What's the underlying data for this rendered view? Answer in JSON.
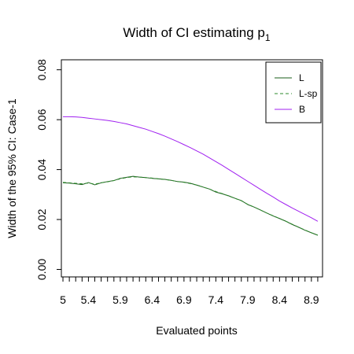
{
  "chart_data": {
    "type": "line",
    "title": "Width of CI estimating p",
    "title_subscript": "1",
    "xlabel": "Evaluated points",
    "ylabel": "Width of the 95% CI: Case-1",
    "xlim": [
      4.975,
      9.075
    ],
    "ylim": [
      -0.003,
      0.084
    ],
    "x_ticks": [
      5,
      5.4,
      5.9,
      6.4,
      6.9,
      7.4,
      7.9,
      8.4,
      8.9
    ],
    "x_tick_labels": [
      "5",
      "5.4",
      "5.9",
      "6.4",
      "6.9",
      "7.4",
      "7.9",
      "8.4",
      "8.9"
    ],
    "x_minor_tick_start": 5.0,
    "x_minor_tick_step": 0.1,
    "x_minor_tick_end": 9.0,
    "y_ticks": [
      0.0,
      0.02,
      0.04,
      0.06,
      0.08
    ],
    "y_tick_labels": [
      "0.00",
      "0.02",
      "0.04",
      "0.06",
      "0.08"
    ],
    "grid": false,
    "legend_position": "top-right",
    "series": [
      {
        "name": "L",
        "color": "#1a5c1a",
        "dash": "solid",
        "x": [
          5.0,
          5.1,
          5.2,
          5.3,
          5.4,
          5.5,
          5.6,
          5.7,
          5.8,
          5.9,
          6.0,
          6.1,
          6.2,
          6.3,
          6.4,
          6.5,
          6.6,
          6.7,
          6.8,
          6.9,
          7.0,
          7.1,
          7.2,
          7.3,
          7.4,
          7.5,
          7.6,
          7.7,
          7.8,
          7.9,
          8.0,
          8.1,
          8.2,
          8.3,
          8.4,
          8.5,
          8.6,
          8.7,
          8.8,
          8.9,
          9.0
        ],
        "y": [
          0.0347,
          0.0346,
          0.0343,
          0.034,
          0.0348,
          0.0339,
          0.0347,
          0.0352,
          0.0356,
          0.0365,
          0.0369,
          0.0373,
          0.037,
          0.0368,
          0.0365,
          0.0363,
          0.0361,
          0.0357,
          0.0352,
          0.035,
          0.0345,
          0.0338,
          0.033,
          0.0322,
          0.031,
          0.0303,
          0.0295,
          0.0285,
          0.0276,
          0.026,
          0.025,
          0.0238,
          0.0226,
          0.0214,
          0.0204,
          0.0193,
          0.018,
          0.0169,
          0.0157,
          0.0147,
          0.0137
        ]
      },
      {
        "name": "L-sp",
        "color": "#2e8b2e",
        "dash": "dashed",
        "x": [
          5.0,
          5.1,
          5.2,
          5.3,
          5.4,
          5.5,
          5.6,
          5.7,
          5.8,
          5.9,
          6.0,
          6.1,
          6.2,
          6.3,
          6.4,
          6.5,
          6.6,
          6.7,
          6.8,
          6.9,
          7.0,
          7.1,
          7.2,
          7.3,
          7.4,
          7.5,
          7.6,
          7.7,
          7.8,
          7.9,
          8.0,
          8.1,
          8.2,
          8.3,
          8.4,
          8.5,
          8.6,
          8.7,
          8.8,
          8.9,
          9.0
        ],
        "y": [
          0.0349,
          0.0347,
          0.0345,
          0.0343,
          0.0346,
          0.0342,
          0.0347,
          0.0351,
          0.0356,
          0.0363,
          0.0368,
          0.0371,
          0.037,
          0.0368,
          0.0366,
          0.0363,
          0.036,
          0.0357,
          0.0352,
          0.0349,
          0.0344,
          0.0338,
          0.033,
          0.0322,
          0.0312,
          0.0304,
          0.0294,
          0.0285,
          0.0275,
          0.0261,
          0.025,
          0.0238,
          0.0226,
          0.0215,
          0.0204,
          0.0193,
          0.0181,
          0.0169,
          0.0158,
          0.0147,
          0.0137
        ]
      },
      {
        "name": "B",
        "color": "#a020f0",
        "dash": "solid",
        "x": [
          5.0,
          5.1,
          5.2,
          5.3,
          5.4,
          5.5,
          5.6,
          5.7,
          5.8,
          5.9,
          6.0,
          6.1,
          6.2,
          6.3,
          6.4,
          6.5,
          6.6,
          6.7,
          6.8,
          6.9,
          7.0,
          7.1,
          7.2,
          7.3,
          7.4,
          7.5,
          7.6,
          7.7,
          7.8,
          7.9,
          8.0,
          8.1,
          8.2,
          8.3,
          8.4,
          8.5,
          8.6,
          8.7,
          8.8,
          8.9,
          9.0
        ],
        "y": [
          0.0612,
          0.0612,
          0.0611,
          0.0609,
          0.0606,
          0.0603,
          0.06,
          0.0597,
          0.0593,
          0.0588,
          0.0583,
          0.0576,
          0.0569,
          0.0562,
          0.0553,
          0.0544,
          0.0534,
          0.0523,
          0.0512,
          0.05,
          0.0488,
          0.0475,
          0.0462,
          0.0447,
          0.0432,
          0.0417,
          0.0401,
          0.0385,
          0.0369,
          0.0353,
          0.0337,
          0.0321,
          0.0305,
          0.029,
          0.0274,
          0.026,
          0.0246,
          0.0233,
          0.022,
          0.0207,
          0.0193
        ]
      }
    ]
  }
}
